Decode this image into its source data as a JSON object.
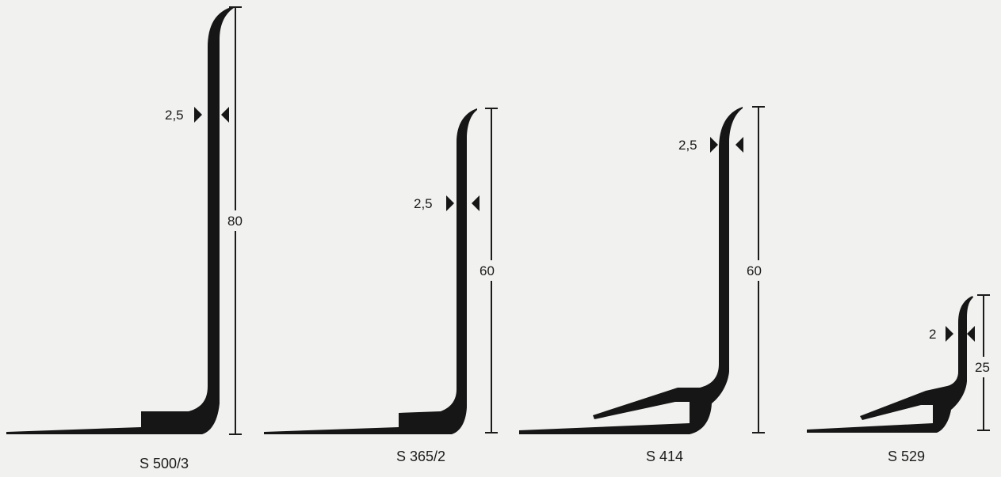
{
  "colors": {
    "background": "#f1f1ef",
    "ink": "#161616"
  },
  "profiles": [
    {
      "name": "S 500/3",
      "height": "80",
      "thickness": "2,5"
    },
    {
      "name": "S 365/2",
      "height": "60",
      "thickness": "2,5"
    },
    {
      "name": "S 414",
      "height": "60",
      "thickness": "2,5"
    },
    {
      "name": "S 529",
      "height": "25",
      "thickness": "2"
    }
  ]
}
